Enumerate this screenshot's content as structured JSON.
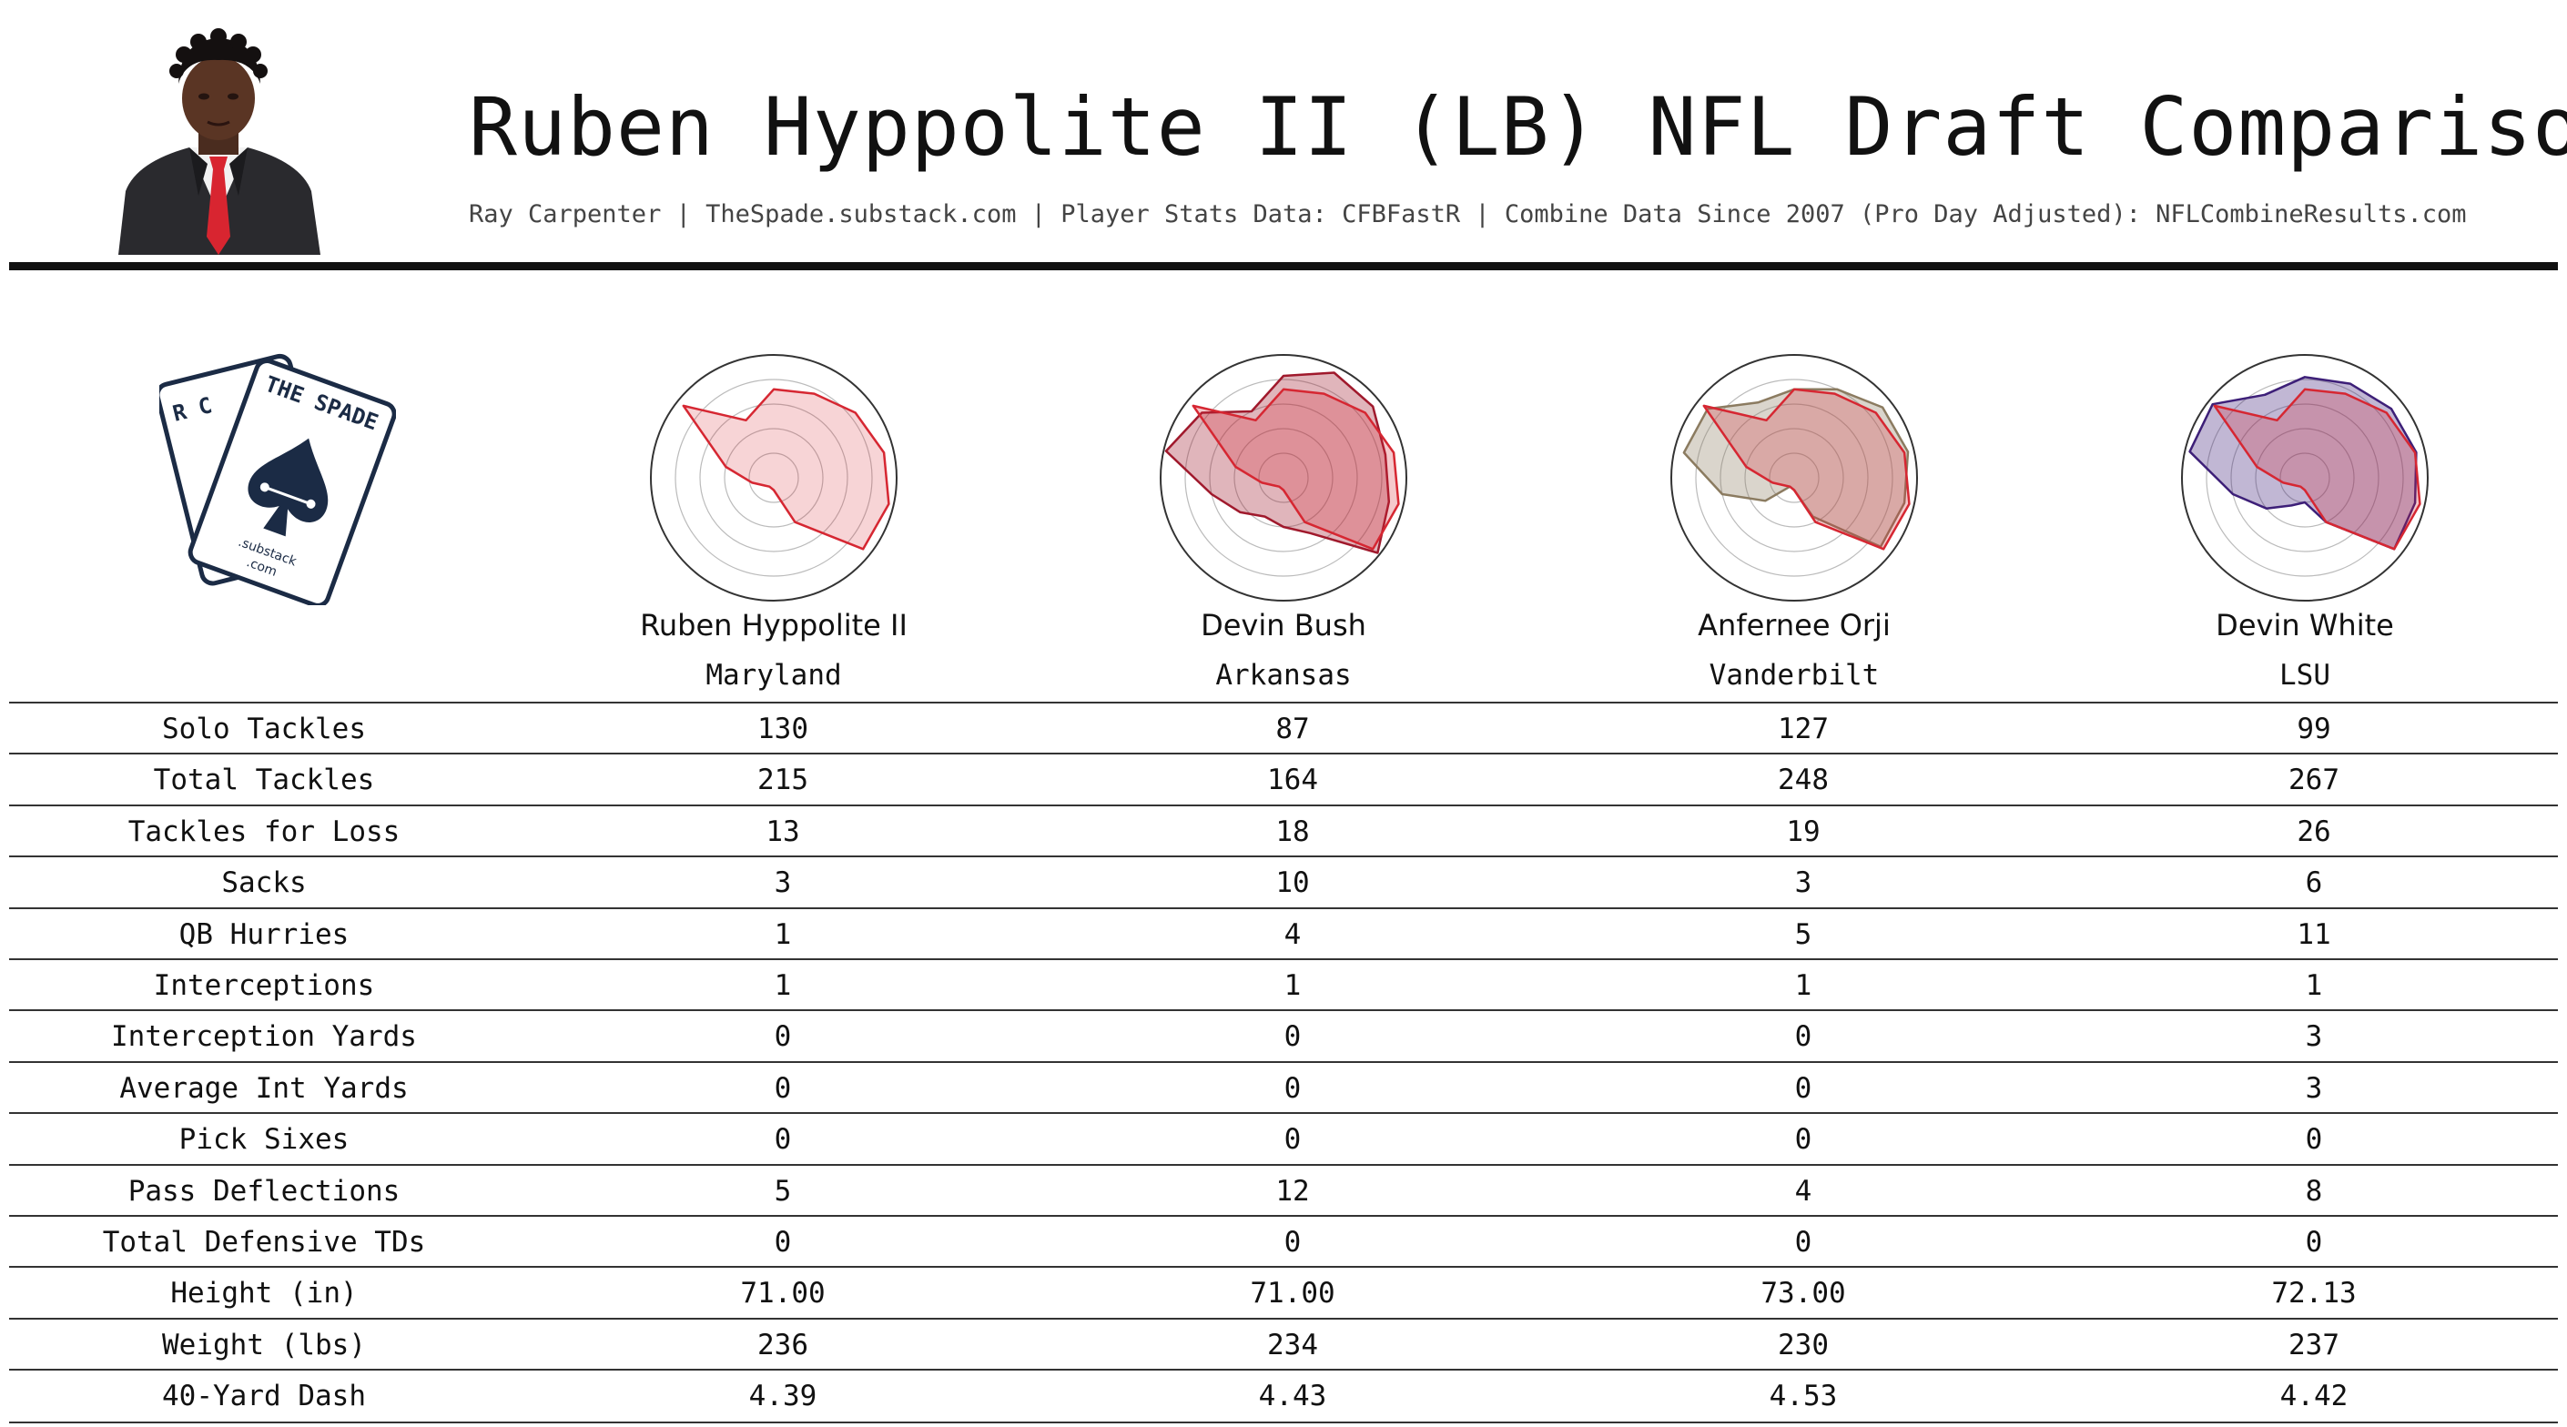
{
  "header": {
    "title": "Ruben Hyppolite II (LB) NFL Draft Comparison",
    "subtitle": "Ray Carpenter | TheSpade.substack.com | Player Stats Data: CFBFastR | Combine Data Since 2007 (Pro Day Adjusted): NFLCombineResults.com"
  },
  "logo": {
    "back_card_letters": "R C",
    "front_card_letters": "THE SPADE",
    "caption_line1": ".substack",
    "caption_line2": ".com"
  },
  "colors": {
    "target": "#d62732",
    "comparisons": [
      "#a0192c",
      "#8b7b60",
      "#3d1f78"
    ]
  },
  "chart_data": {
    "type": "table",
    "columns": [
      {
        "player": "Ruben Hyppolite II",
        "school": "Maryland"
      },
      {
        "player": "Devin Bush",
        "school": "Arkansas"
      },
      {
        "player": "Anfernee Orji",
        "school": "Vanderbilt"
      },
      {
        "player": "Devin White",
        "school": "LSU"
      }
    ],
    "rows": [
      {
        "label": "Solo Tackles",
        "values": [
          "130",
          "87",
          "127",
          "99"
        ]
      },
      {
        "label": "Total Tackles",
        "values": [
          "215",
          "164",
          "248",
          "267"
        ]
      },
      {
        "label": "Tackles for Loss",
        "values": [
          "13",
          "18",
          "19",
          "26"
        ]
      },
      {
        "label": "Sacks",
        "values": [
          "3",
          "10",
          "3",
          "6"
        ]
      },
      {
        "label": "QB Hurries",
        "values": [
          "1",
          "4",
          "5",
          "11"
        ]
      },
      {
        "label": "Interceptions",
        "values": [
          "1",
          "1",
          "1",
          "1"
        ]
      },
      {
        "label": "Interception Yards",
        "values": [
          "0",
          "0",
          "0",
          "3"
        ]
      },
      {
        "label": "Average Int Yards",
        "values": [
          "0",
          "0",
          "0",
          "3"
        ]
      },
      {
        "label": "Pick Sixes",
        "values": [
          "0",
          "0",
          "0",
          "0"
        ]
      },
      {
        "label": "Pass Deflections",
        "values": [
          "5",
          "12",
          "4",
          "8"
        ]
      },
      {
        "label": "Total Defensive TDs",
        "values": [
          "0",
          "0",
          "0",
          "0"
        ]
      },
      {
        "label": "Height (in)",
        "values": [
          "71.00",
          "71.00",
          "73.00",
          "72.13"
        ]
      },
      {
        "label": "Weight (lbs)",
        "values": [
          "236",
          "234",
          "230",
          "237"
        ]
      },
      {
        "label": "40-Yard Dash",
        "values": [
          "4.39",
          "4.43",
          "4.53",
          "4.42"
        ]
      }
    ],
    "radar": {
      "type": "radar",
      "axes": 14,
      "rings": 5,
      "range": [
        0,
        1
      ],
      "target_values": [
        0.72,
        0.76,
        0.85,
        0.92,
        0.96,
        0.93,
        0.4,
        0.1,
        0.08,
        0.1,
        0.18,
        0.4,
        0.94,
        0.52
      ],
      "comparison_values": [
        [
          0.83,
          0.95,
          0.93,
          0.85,
          0.88,
          0.98,
          0.5,
          0.4,
          0.35,
          0.45,
          0.6,
          0.98,
          0.85,
          0.6
        ],
        [
          0.72,
          0.8,
          0.92,
          0.95,
          0.92,
          0.9,
          0.35,
          0.1,
          0.08,
          0.3,
          0.6,
          0.92,
          0.9,
          0.68
        ],
        [
          0.82,
          0.85,
          0.9,
          0.93,
          0.92,
          0.93,
          0.4,
          0.2,
          0.25,
          0.4,
          0.6,
          0.96,
          0.96,
          0.75
        ]
      ]
    }
  }
}
